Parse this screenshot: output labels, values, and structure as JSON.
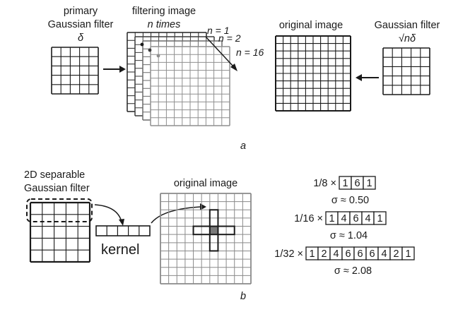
{
  "panel_a": {
    "label": "a",
    "primary": {
      "line1": "primary",
      "line2": "Gaussian filter",
      "symbol": "δ"
    },
    "filtering": {
      "line1": "filtering image",
      "line2": "n times"
    },
    "n_labels": [
      "n = 1",
      "n = 2",
      "n = 16"
    ],
    "original": {
      "title": "original image"
    },
    "gaussian": {
      "line1": "Gaussian filter",
      "symbol": "√nδ"
    }
  },
  "panel_b": {
    "label": "b",
    "separable": {
      "line1": "2D separable",
      "line2": "Gaussian filter"
    },
    "kernel_label": "kernel",
    "original_title": "original image",
    "kernels": [
      {
        "prefix": "1/8 ×",
        "values": [
          "1",
          "6",
          "1"
        ],
        "sigma": "σ ≈ 0.50"
      },
      {
        "prefix": "1/16 ×",
        "values": [
          "1",
          "4",
          "6",
          "4",
          "1"
        ],
        "sigma": "σ ≈ 1.04"
      },
      {
        "prefix": "1/32 ×",
        "values": [
          "1",
          "2",
          "4",
          "6",
          "6",
          "6",
          "4",
          "2",
          "1"
        ],
        "sigma": "σ ≈ 2.08"
      }
    ]
  },
  "colors": {
    "ink": "#1a1a1a",
    "grid_light": "#8a8a8a",
    "highlight": "#7a7a7a"
  }
}
